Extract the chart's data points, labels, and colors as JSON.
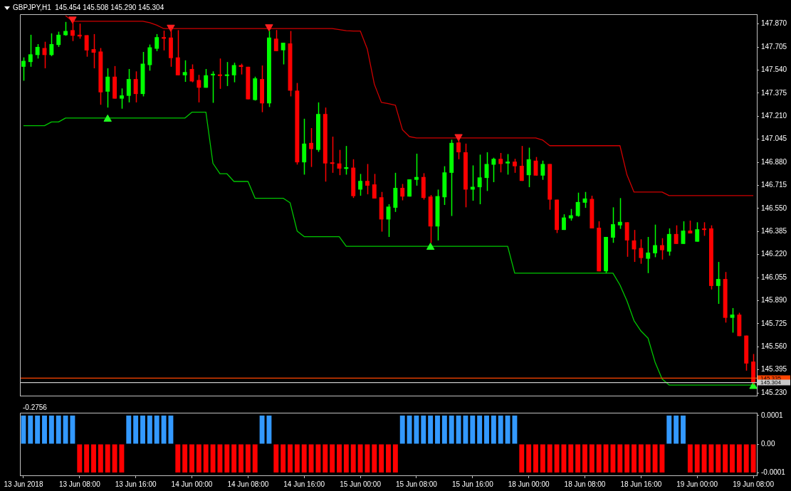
{
  "chart_data": [
    {
      "type": "candlestick",
      "title": "GBPJPY,H1  145.454 145.508 145.290 145.304",
      "categories": [
        null,
        null,
        null,
        null,
        null,
        null,
        null,
        null,
        null,
        null,
        null,
        null,
        null,
        null,
        null,
        null,
        null,
        null,
        null,
        null,
        null,
        null,
        null,
        null,
        null,
        null,
        null,
        null,
        null,
        null,
        null,
        null,
        null,
        null,
        null,
        null,
        null,
        null,
        null,
        null,
        null,
        null,
        null,
        null,
        null,
        null,
        null,
        null,
        null,
        null,
        null,
        null,
        null,
        null,
        null,
        null,
        null,
        null,
        null,
        null,
        null,
        null,
        null,
        null,
        null,
        null,
        null,
        null,
        null,
        null,
        null,
        null,
        null,
        null,
        null,
        null,
        null,
        null,
        null,
        null,
        null,
        null,
        null,
        null,
        null,
        null,
        null,
        null,
        null,
        null,
        null,
        null,
        null,
        null,
        null,
        null,
        null,
        null,
        null,
        null,
        null,
        null,
        null,
        null,
        null
      ],
      "ohlc": [
        [
          147.564,
          147.631,
          147.464,
          147.606
        ],
        [
          147.598,
          147.793,
          147.564,
          147.653
        ],
        [
          147.648,
          147.726,
          147.623,
          147.706
        ],
        [
          147.698,
          147.743,
          147.553,
          147.648
        ],
        [
          147.648,
          147.803,
          147.64,
          147.726
        ],
        [
          147.72,
          147.815,
          147.706,
          147.793
        ],
        [
          147.79,
          147.885,
          147.786,
          147.82
        ],
        [
          147.826,
          147.898,
          147.748,
          147.786
        ],
        [
          147.793,
          147.873,
          147.765,
          147.781
        ],
        [
          147.79,
          147.79,
          147.636,
          147.681
        ],
        [
          147.69,
          147.798,
          147.553,
          147.665
        ],
        [
          147.673,
          147.698,
          147.292,
          147.381
        ],
        [
          147.386,
          147.553,
          147.272,
          147.493
        ],
        [
          147.493,
          147.569,
          147.336,
          147.336
        ],
        [
          147.336,
          147.409,
          147.264,
          147.359
        ],
        [
          147.356,
          147.548,
          147.309,
          147.476
        ],
        [
          147.476,
          147.531,
          147.309,
          147.369
        ],
        [
          147.369,
          147.67,
          147.352,
          147.586
        ],
        [
          147.576,
          147.723,
          147.536,
          147.703
        ],
        [
          147.693,
          147.798,
          147.676,
          147.776
        ],
        [
          147.776,
          147.823,
          147.681,
          147.765
        ],
        [
          147.773,
          147.84,
          147.564,
          147.626
        ],
        [
          147.631,
          147.826,
          147.503,
          147.503
        ],
        [
          147.503,
          147.61,
          147.456,
          147.526
        ],
        [
          147.548,
          147.581,
          147.453,
          147.459
        ],
        [
          147.469,
          147.506,
          147.309,
          147.414
        ],
        [
          147.414,
          147.548,
          147.414,
          147.503
        ],
        [
          147.503,
          147.531,
          147.306,
          147.51
        ],
        [
          147.509,
          147.623,
          147.406,
          147.498
        ],
        [
          147.498,
          147.598,
          147.426,
          147.509
        ],
        [
          147.503,
          147.593,
          147.453,
          147.576
        ],
        [
          147.576,
          147.586,
          147.509,
          147.563
        ],
        [
          147.564,
          147.564,
          147.331,
          147.331
        ],
        [
          147.326,
          147.493,
          147.322,
          147.481
        ],
        [
          147.476,
          147.573,
          147.239,
          147.302
        ],
        [
          147.302,
          147.82,
          147.276,
          147.773
        ],
        [
          147.765,
          147.827,
          147.676,
          147.676
        ],
        [
          147.682,
          147.736,
          147.581,
          147.736
        ],
        [
          147.731,
          147.82,
          147.352,
          147.393
        ],
        [
          147.393,
          147.448,
          146.864,
          146.88
        ],
        [
          146.88,
          147.192,
          146.792,
          147.014
        ],
        [
          147.019,
          147.125,
          146.847,
          146.975
        ],
        [
          146.969,
          147.309,
          146.955,
          147.226
        ],
        [
          147.226,
          147.272,
          146.742,
          146.872
        ],
        [
          146.88,
          147.064,
          146.805,
          146.869
        ],
        [
          146.872,
          146.969,
          146.788,
          146.835
        ],
        [
          146.833,
          146.997,
          146.792,
          146.845
        ],
        [
          146.842,
          146.902,
          146.625,
          146.638
        ],
        [
          146.685,
          146.797,
          146.641,
          146.747
        ],
        [
          146.747,
          146.868,
          146.651,
          146.713
        ],
        [
          146.722,
          146.797,
          146.621,
          146.621
        ],
        [
          146.63,
          146.668,
          146.384,
          146.471
        ],
        [
          146.471,
          146.58,
          146.346,
          146.563
        ],
        [
          146.555,
          146.805,
          146.525,
          146.697
        ],
        [
          146.697,
          146.725,
          146.608,
          146.635
        ],
        [
          146.635,
          146.758,
          146.635,
          146.758
        ],
        [
          146.755,
          146.942,
          146.713,
          146.775
        ],
        [
          146.775,
          146.802,
          146.613,
          146.625
        ],
        [
          146.635,
          146.646,
          146.304,
          146.421
        ],
        [
          146.421,
          146.685,
          146.321,
          146.638
        ],
        [
          146.63,
          146.852,
          146.575,
          146.808
        ],
        [
          146.805,
          147.042,
          146.496,
          147.019
        ],
        [
          147.022,
          147.042,
          146.902,
          146.952
        ],
        [
          146.952,
          147.014,
          146.558,
          146.685
        ],
        [
          146.685,
          146.858,
          146.605,
          146.705
        ],
        [
          146.702,
          146.935,
          146.58,
          146.772
        ],
        [
          146.768,
          146.952,
          146.675,
          146.868
        ],
        [
          146.863,
          146.913,
          146.738,
          146.905
        ],
        [
          146.905,
          146.947,
          146.808,
          146.868
        ],
        [
          146.872,
          146.939,
          146.792,
          146.885
        ],
        [
          146.885,
          146.905,
          146.805,
          146.852
        ],
        [
          146.855,
          146.997,
          146.747,
          146.747
        ],
        [
          146.788,
          146.985,
          146.702,
          146.902
        ],
        [
          146.892,
          146.918,
          146.785,
          146.785
        ],
        [
          146.785,
          146.892,
          146.755,
          146.868
        ],
        [
          146.868,
          146.868,
          146.541,
          146.613
        ],
        [
          146.613,
          146.613,
          146.374,
          146.396
        ],
        [
          146.396,
          146.508,
          146.396,
          146.485
        ],
        [
          146.479,
          146.546,
          146.463,
          146.501
        ],
        [
          146.496,
          146.663,
          146.491,
          146.596
        ],
        [
          146.591,
          146.668,
          146.554,
          146.621
        ],
        [
          146.618,
          146.641,
          146.407,
          146.407
        ],
        [
          146.412,
          146.458,
          146.1,
          146.1
        ],
        [
          146.1,
          146.346,
          146.087,
          146.346
        ],
        [
          146.341,
          146.558,
          146.304,
          146.437
        ],
        [
          146.429,
          146.624,
          146.404,
          146.454
        ],
        [
          146.451,
          146.451,
          146.204,
          146.321
        ],
        [
          146.321,
          146.396,
          146.167,
          146.257
        ],
        [
          146.267,
          146.329,
          146.154,
          146.195
        ],
        [
          146.19,
          146.346,
          146.087,
          146.234
        ],
        [
          146.229,
          146.434,
          146.201,
          146.287
        ],
        [
          146.287,
          146.337,
          146.184,
          146.251
        ],
        [
          146.241,
          146.407,
          146.212,
          146.367
        ],
        [
          146.367,
          146.429,
          146.296,
          146.296
        ],
        [
          146.296,
          146.458,
          146.296,
          146.391
        ],
        [
          146.391,
          146.463,
          146.371,
          146.371
        ],
        [
          146.312,
          146.451,
          146.312,
          146.401
        ],
        [
          146.404,
          146.451,
          146.354,
          146.396
        ],
        [
          146.407,
          146.429,
          145.97,
          145.995
        ],
        [
          145.995,
          146.167,
          145.867,
          146.045
        ],
        [
          146.045,
          146.095,
          145.733,
          145.767
        ],
        [
          145.767,
          145.837,
          145.661,
          145.79
        ],
        [
          145.79,
          145.803,
          145.636,
          145.636
        ],
        [
          145.64,
          145.64,
          145.389,
          145.44
        ],
        [
          145.454,
          145.508,
          145.29,
          145.304
        ]
      ],
      "colors": [
        "#00ff00",
        "#00ff00",
        "#00ff00",
        "#ff0000",
        "#00ff00",
        "#00ff00",
        "#00ff00",
        "#ff0000",
        "#ff0000",
        "#ff0000",
        "#ff0000",
        "#ff0000",
        "#00ff00",
        "#ff0000",
        "#00ff00",
        "#00ff00",
        "#ff0000",
        "#00ff00",
        "#00ff00",
        "#00ff00",
        "#ff0000",
        "#ff0000",
        "#ff0000",
        "#00ff00",
        "#ff0000",
        "#ff0000",
        "#00ff00",
        "#00ff00",
        "#ff0000",
        "#00ff00",
        "#00ff00",
        "#ff0000",
        "#ff0000",
        "#00ff00",
        "#ff0000",
        "#00ff00",
        "#ff0000",
        "#00ff00",
        "#ff0000",
        "#ff0000",
        "#00ff00",
        "#ff0000",
        "#00ff00",
        "#ff0000",
        "#ff0000",
        "#ff0000",
        "#00ff00",
        "#ff0000",
        "#00ff00",
        "#ff0000",
        "#ff0000",
        "#ff0000",
        "#00ff00",
        "#00ff00",
        "#ff0000",
        "#00ff00",
        "#00ff00",
        "#ff0000",
        "#ff0000",
        "#00ff00",
        "#00ff00",
        "#00ff00",
        "#ff0000",
        "#ff0000",
        "#00ff00",
        "#00ff00",
        "#00ff00",
        "#00ff00",
        "#ff0000",
        "#00ff00",
        "#ff0000",
        "#ff0000",
        "#00ff00",
        "#ff0000",
        "#00ff00",
        "#ff0000",
        "#ff0000",
        "#00ff00",
        "#00ff00",
        "#00ff00",
        "#00ff00",
        "#ff0000",
        "#ff0000",
        "#00ff00",
        "#00ff00",
        "#00ff00",
        "#ff0000",
        "#ff0000",
        "#ff0000",
        "#00ff00",
        "#00ff00",
        "#ff0000",
        "#00ff00",
        "#ff0000",
        "#00ff00",
        "#ff0000",
        "#00ff00",
        "#ff0000",
        "#ff0000",
        "#00ff00",
        "#ff0000",
        "#00ff00",
        "#ff0000",
        "#ff0000",
        "#ff0000"
      ],
      "series": [
        {
          "type": "line",
          "color": "#d00000",
          "values": [
            null,
            null,
            null,
            null,
            null,
            null,
            147.93,
            147.89,
            147.89,
            147.89,
            147.89,
            147.89,
            147.89,
            147.89,
            147.89,
            147.89,
            147.89,
            147.89,
            147.88,
            147.862,
            147.837,
            147.837,
            147.837,
            147.837,
            147.837,
            147.837,
            147.837,
            147.837,
            147.837,
            147.837,
            147.837,
            147.837,
            147.837,
            147.837,
            147.837,
            147.837,
            147.837,
            147.837,
            147.837,
            147.837,
            147.837,
            147.837,
            147.837,
            147.837,
            147.837,
            147.83,
            147.822,
            147.82,
            147.82,
            147.69,
            147.439,
            147.309,
            147.3,
            147.289,
            147.114,
            147.064,
            147.054,
            147.054,
            147.054,
            147.054,
            147.054,
            147.054,
            147.054,
            147.054,
            147.054,
            147.054,
            147.054,
            147.054,
            147.054,
            147.054,
            147.054,
            147.054,
            147.054,
            147.054,
            147.039,
            146.999,
            146.999,
            146.999,
            146.999,
            146.999,
            146.999,
            146.999,
            146.999,
            146.999,
            146.999,
            146.999,
            146.79,
            146.667,
            146.667,
            146.667,
            146.667,
            146.667,
            146.642,
            146.642,
            146.642,
            146.642,
            146.642,
            146.642,
            146.642,
            146.642,
            146.642,
            146.642,
            146.642,
            146.642,
            146.642
          ]
        },
        {
          "type": "line",
          "color": "#00c800",
          "values": [
            147.142,
            147.142,
            147.142,
            147.142,
            147.169,
            147.169,
            147.197,
            147.197,
            147.197,
            147.197,
            147.197,
            147.197,
            147.197,
            147.197,
            147.197,
            147.197,
            147.197,
            147.197,
            147.197,
            147.197,
            147.197,
            147.197,
            147.197,
            147.197,
            147.239,
            147.239,
            147.239,
            146.873,
            146.798,
            146.798,
            146.743,
            146.743,
            146.743,
            146.623,
            146.623,
            146.623,
            146.623,
            146.623,
            146.59,
            146.388,
            146.348,
            146.348,
            146.348,
            146.348,
            146.348,
            146.348,
            146.279,
            146.279,
            146.279,
            146.279,
            146.279,
            146.279,
            146.279,
            146.279,
            146.279,
            146.279,
            146.279,
            146.279,
            146.279,
            146.279,
            146.279,
            146.279,
            146.279,
            146.279,
            146.279,
            146.279,
            146.279,
            146.279,
            146.279,
            146.279,
            146.087,
            146.087,
            146.087,
            146.087,
            146.087,
            146.087,
            146.087,
            146.087,
            146.087,
            146.087,
            146.087,
            146.087,
            146.087,
            146.087,
            146.087,
            146.002,
            145.887,
            145.747,
            145.672,
            145.621,
            145.45,
            145.33,
            145.286,
            145.286,
            145.286,
            145.286,
            145.286,
            145.286,
            145.286,
            145.286,
            145.286,
            145.286,
            145.286,
            145.286,
            145.286
          ]
        },
        {
          "type": "scatter",
          "color": "#ff2020",
          "marker": "triangle",
          "values": [
            null,
            null,
            null,
            null,
            null,
            null,
            null,
            147.905,
            null,
            null,
            null,
            null,
            null,
            null,
            null,
            null,
            null,
            null,
            null,
            null,
            null,
            147.847,
            null,
            null,
            null,
            null,
            null,
            null,
            null,
            null,
            null,
            null,
            null,
            null,
            null,
            147.85,
            null,
            null,
            null,
            null,
            null,
            null,
            null,
            null,
            null,
            null,
            null,
            null,
            null,
            null,
            null,
            null,
            null,
            null,
            null,
            null,
            null,
            null,
            null,
            null,
            null,
            null,
            147.064,
            null,
            null,
            null,
            null,
            null,
            null,
            null,
            null,
            null,
            null,
            null,
            null,
            null,
            null,
            null,
            null,
            null,
            null,
            null,
            null,
            null,
            null,
            null,
            null,
            null,
            null,
            null,
            null,
            null,
            null,
            null,
            null,
            null,
            null,
            null,
            null,
            null,
            null,
            null,
            null,
            null,
            null
          ]
        },
        {
          "type": "scatter",
          "color": "#20ff20",
          "marker": "triangle",
          "values": [
            null,
            null,
            null,
            null,
            null,
            null,
            null,
            null,
            null,
            null,
            null,
            null,
            147.189,
            null,
            null,
            null,
            null,
            null,
            null,
            null,
            null,
            null,
            null,
            null,
            null,
            null,
            null,
            null,
            null,
            null,
            null,
            null,
            null,
            null,
            null,
            null,
            null,
            null,
            null,
            null,
            null,
            null,
            null,
            null,
            null,
            null,
            null,
            null,
            null,
            null,
            null,
            null,
            null,
            null,
            null,
            null,
            null,
            null,
            146.272,
            null,
            null,
            null,
            null,
            null,
            null,
            null,
            null,
            null,
            null,
            null,
            null,
            null,
            null,
            null,
            null,
            null,
            null,
            null,
            null,
            null,
            null,
            null,
            null,
            null,
            null,
            null,
            null,
            null,
            null,
            null,
            null,
            null,
            null,
            null,
            null,
            null,
            null,
            null,
            null,
            null,
            null,
            null,
            null,
            null,
            145.276
          ]
        }
      ],
      "ylim": [
        145.21,
        147.94
      ],
      "yticks": [
        {
          "value": 147.87,
          "label": "147.870"
        },
        147.705,
        {
          "value": 147.54,
          "label": "147.540"
        },
        147.375,
        {
          "value": 147.21,
          "label": "147.210"
        },
        147.045,
        {
          "value": 146.88,
          "label": "146.880"
        },
        146.715,
        {
          "value": 146.55,
          "label": "146.550"
        },
        146.385,
        {
          "value": 146.22,
          "label": "146.220"
        },
        146.055,
        {
          "value": 145.89,
          "label": "145.890"
        },
        145.725,
        {
          "value": 145.56,
          "label": "145.560"
        },
        145.395,
        {
          "value": 145.23,
          "label": "145.230"
        }
      ],
      "ref_lines": [
        {
          "axis": "y",
          "value": 145.335,
          "label": "145.335",
          "color": "#ff4500"
        },
        {
          "axis": "y",
          "value": 145.304,
          "label": "145.304",
          "color": "#c8c8c8"
        }
      ],
      "tick_labels": "y"
    },
    {
      "type": "bar",
      "title": "-0.2756",
      "categories": [
        "13 Jun 2018",
        null,
        null,
        null,
        null,
        null,
        null,
        null,
        "13 Jun 08:00",
        null,
        null,
        null,
        null,
        null,
        null,
        null,
        "13 Jun 16:00",
        null,
        null,
        null,
        null,
        null,
        null,
        null,
        "14 Jun 00:00",
        null,
        null,
        null,
        null,
        null,
        null,
        null,
        "14 Jun 08:00",
        null,
        null,
        null,
        null,
        null,
        null,
        null,
        "14 Jun 16:00",
        null,
        null,
        null,
        null,
        null,
        null,
        null,
        "15 Jun 00:00",
        null,
        null,
        null,
        null,
        null,
        null,
        null,
        "15 Jun 08:00",
        null,
        null,
        null,
        null,
        null,
        null,
        null,
        "15 Jun 16:00",
        null,
        null,
        null,
        null,
        null,
        null,
        null,
        "18 Jun 00:00",
        null,
        null,
        null,
        null,
        null,
        null,
        null,
        "18 Jun 08:00",
        null,
        null,
        null,
        null,
        null,
        null,
        null,
        "18 Jun 16:00",
        null,
        null,
        null,
        null,
        null,
        null,
        null,
        "19 Jun 00:00",
        null,
        null,
        null,
        null,
        null,
        null,
        null,
        "19 Jun 08:00"
      ],
      "values": [
        0.0001,
        0.0001,
        0.0001,
        0.0001,
        0.0001,
        0.0001,
        0.0001,
        0.0001,
        -0.0001,
        -0.0001,
        -0.0001,
        -0.0001,
        -0.0001,
        -0.0001,
        -0.0001,
        0.0001,
        0.0001,
        0.0001,
        0.0001,
        0.0001,
        0.0001,
        0.0001,
        -0.0001,
        -0.0001,
        -0.0001,
        -0.0001,
        -0.0001,
        -0.0001,
        -0.0001,
        -0.0001,
        -0.0001,
        -0.0001,
        -0.0001,
        -0.0001,
        0.0001,
        0.0001,
        -0.0001,
        -0.0001,
        -0.0001,
        -0.0001,
        -0.0001,
        -0.0001,
        -0.0001,
        -0.0001,
        -0.0001,
        -0.0001,
        -0.0001,
        -0.0001,
        -0.0001,
        -0.0001,
        -0.0001,
        -0.0001,
        -0.0001,
        -0.0001,
        0.0001,
        0.0001,
        0.0001,
        0.0001,
        0.0001,
        0.0001,
        0.0001,
        0.0001,
        0.0001,
        0.0001,
        0.0001,
        0.0001,
        0.0001,
        0.0001,
        0.0001,
        0.0001,
        0.0001,
        -0.0001,
        -0.0001,
        -0.0001,
        -0.0001,
        -0.0001,
        -0.0001,
        -0.0001,
        -0.0001,
        -0.0001,
        -0.0001,
        -0.0001,
        -0.0001,
        -0.0001,
        -0.0001,
        -0.0001,
        -0.0001,
        -0.0001,
        -0.0001,
        -0.0001,
        -0.0001,
        -0.0001,
        0.0001,
        0.0001,
        0.0001,
        -0.0001,
        -0.0001,
        -0.0001,
        -0.0001,
        -0.0001,
        -0.0001,
        -0.0001,
        -0.0001,
        -0.0001,
        -0.0001
      ],
      "colors": [
        "#3399ff",
        "#3399ff",
        "#3399ff",
        "#3399ff",
        "#3399ff",
        "#3399ff",
        "#3399ff",
        "#3399ff",
        "#ff0000",
        "#ff0000",
        "#ff0000",
        "#ff0000",
        "#ff0000",
        "#ff0000",
        "#ff0000",
        "#3399ff",
        "#3399ff",
        "#3399ff",
        "#3399ff",
        "#3399ff",
        "#3399ff",
        "#3399ff",
        "#ff0000",
        "#ff0000",
        "#ff0000",
        "#ff0000",
        "#ff0000",
        "#ff0000",
        "#ff0000",
        "#ff0000",
        "#ff0000",
        "#ff0000",
        "#ff0000",
        "#ff0000",
        "#3399ff",
        "#3399ff",
        "#ff0000",
        "#ff0000",
        "#ff0000",
        "#ff0000",
        "#ff0000",
        "#ff0000",
        "#ff0000",
        "#ff0000",
        "#ff0000",
        "#ff0000",
        "#ff0000",
        "#ff0000",
        "#ff0000",
        "#ff0000",
        "#ff0000",
        "#ff0000",
        "#ff0000",
        "#ff0000",
        "#3399ff",
        "#3399ff",
        "#3399ff",
        "#3399ff",
        "#3399ff",
        "#3399ff",
        "#3399ff",
        "#3399ff",
        "#3399ff",
        "#3399ff",
        "#3399ff",
        "#3399ff",
        "#3399ff",
        "#3399ff",
        "#3399ff",
        "#3399ff",
        "#3399ff",
        "#ff0000",
        "#ff0000",
        "#ff0000",
        "#ff0000",
        "#ff0000",
        "#ff0000",
        "#ff0000",
        "#ff0000",
        "#ff0000",
        "#ff0000",
        "#ff0000",
        "#ff0000",
        "#ff0000",
        "#ff0000",
        "#ff0000",
        "#ff0000",
        "#ff0000",
        "#ff0000",
        "#ff0000",
        "#ff0000",
        "#ff0000",
        "#3399ff",
        "#3399ff",
        "#3399ff",
        "#ff0000",
        "#ff0000",
        "#ff0000",
        "#ff0000",
        "#ff0000",
        "#ff0000",
        "#ff0000",
        "#ff0000",
        "#ff0000",
        "#ff0000"
      ],
      "ylim": [
        -0.00011,
        0.00011
      ],
      "yticks": [
        0.0001,
        {
          "value": 0,
          "label": "0.00"
        },
        -0.0001
      ]
    }
  ]
}
